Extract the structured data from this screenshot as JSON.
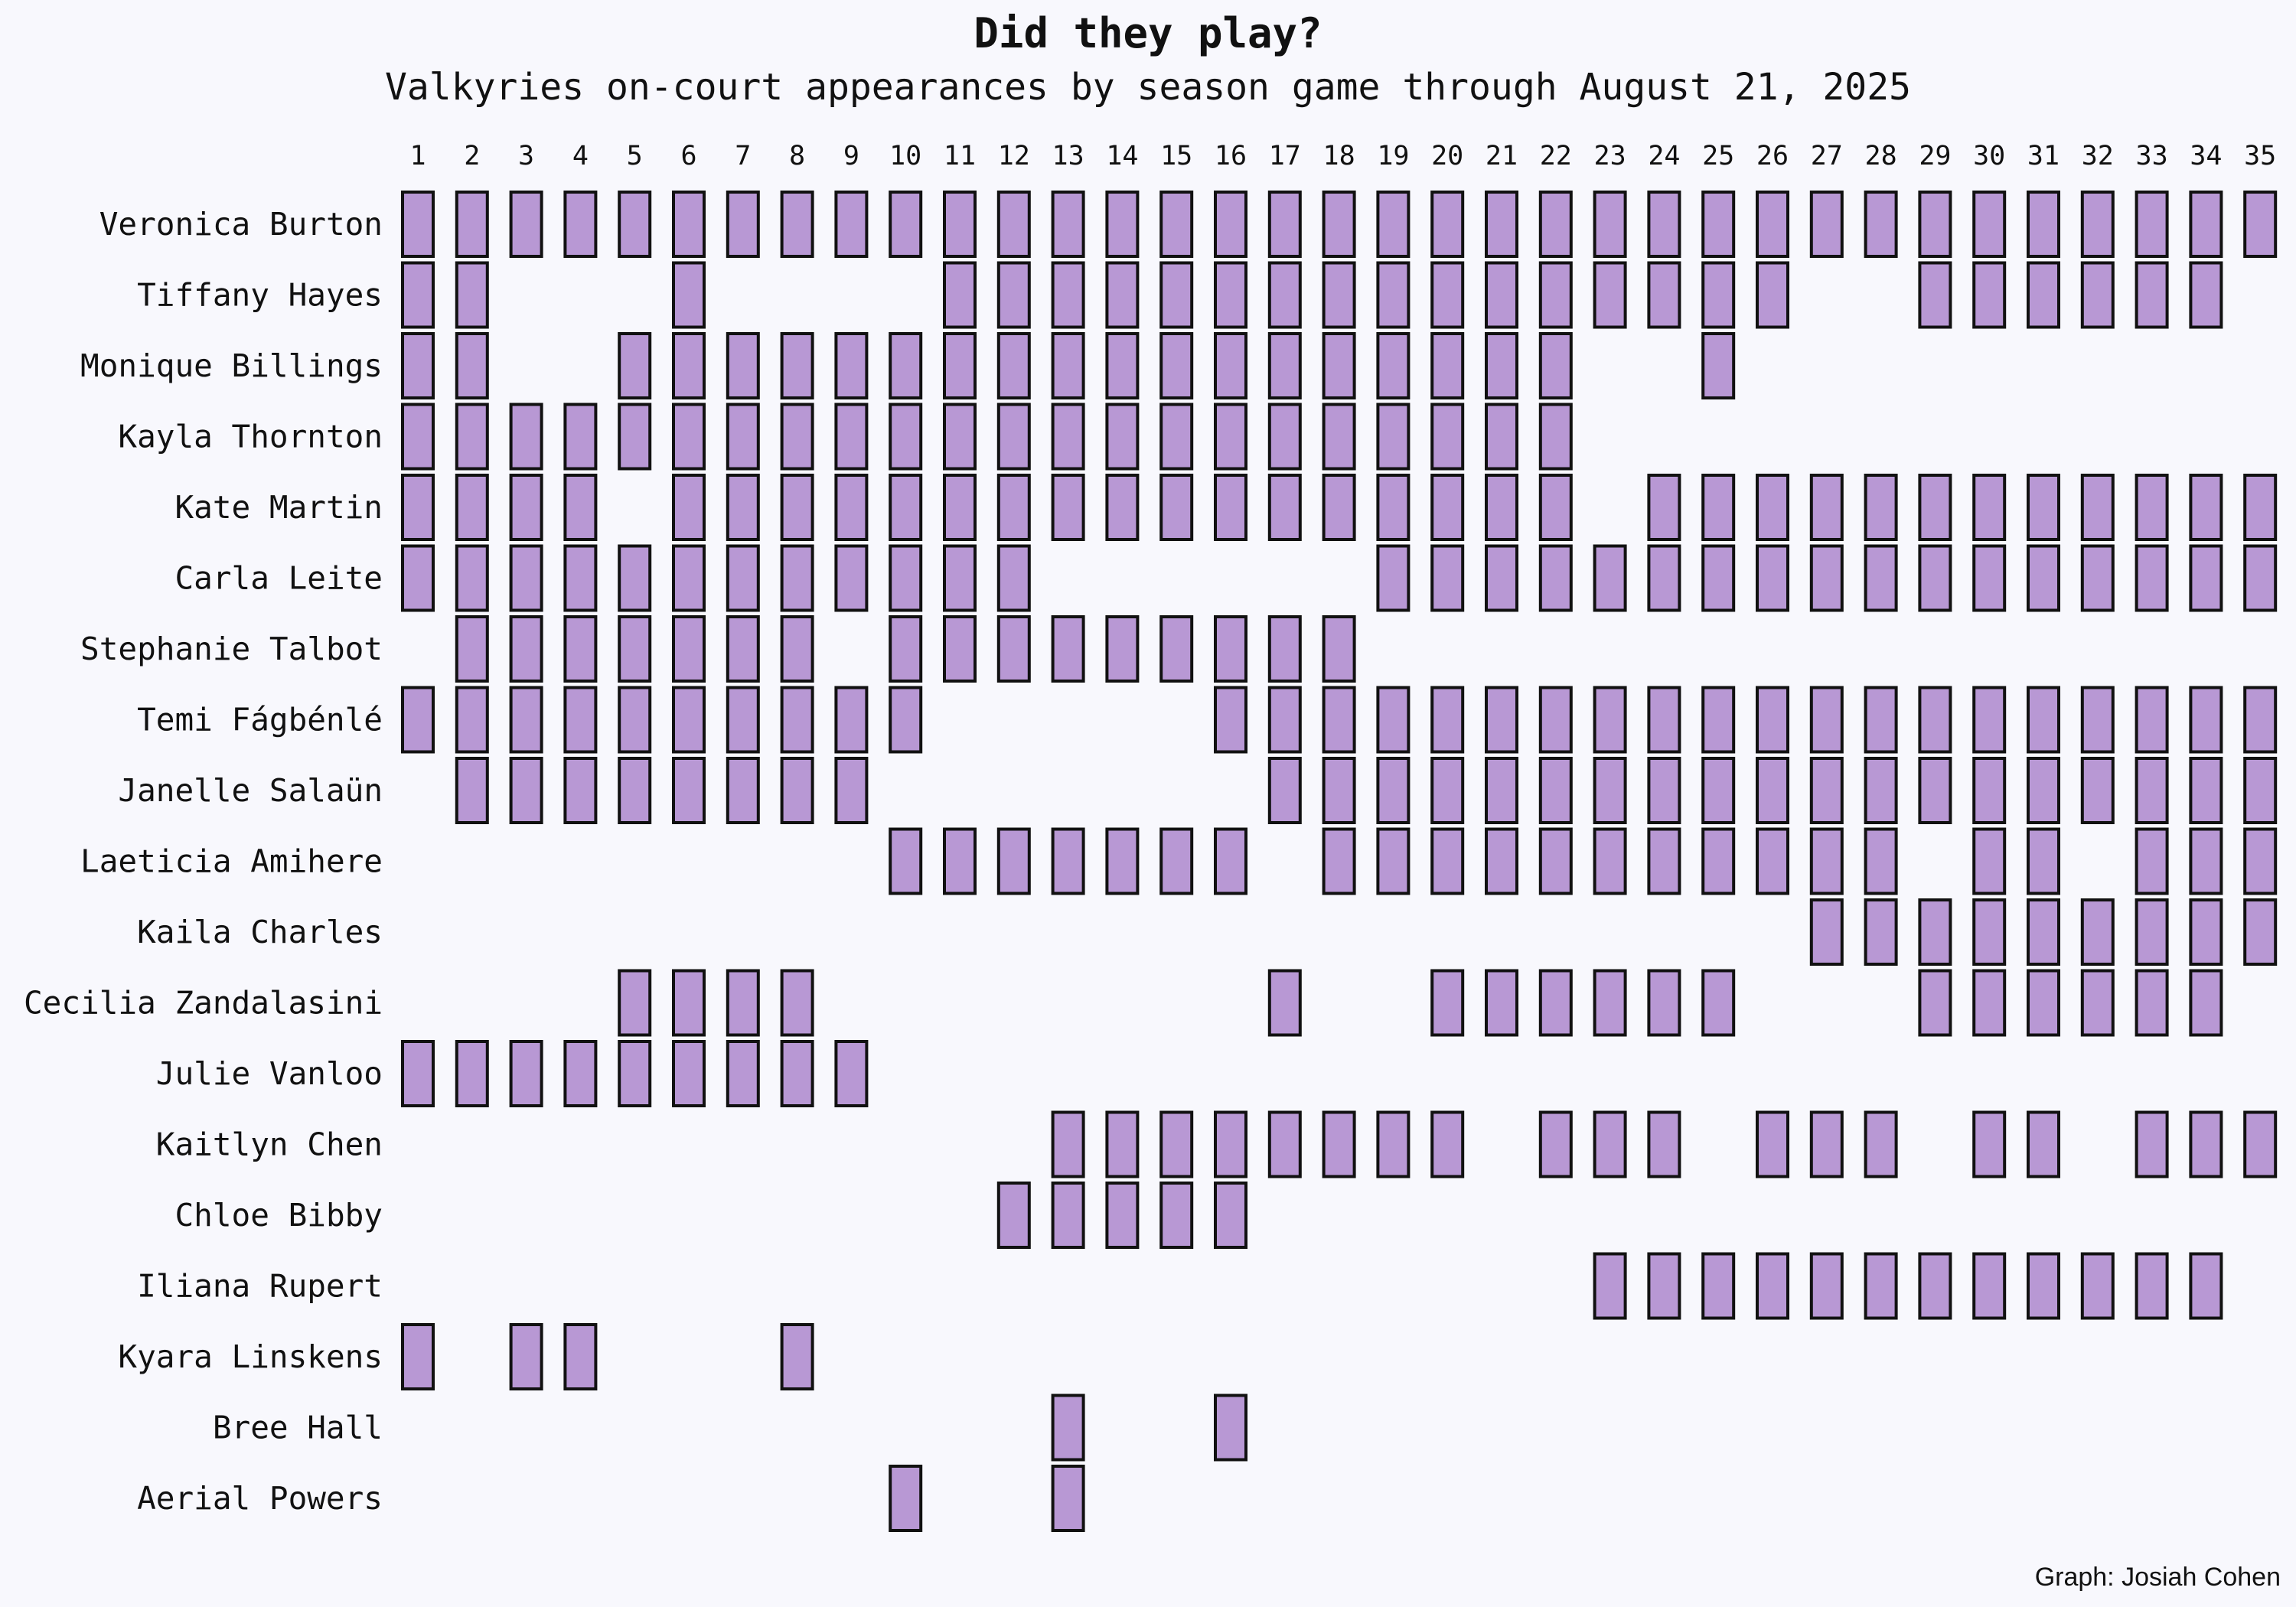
{
  "chart_data": {
    "type": "heatmap",
    "title": "Did they play?",
    "subtitle": "Valkyries on-court appearances by season game through August 21, 2025",
    "caption": "Graph: Josiah Cohen",
    "games": [
      1,
      2,
      3,
      4,
      5,
      6,
      7,
      8,
      9,
      10,
      11,
      12,
      13,
      14,
      15,
      16,
      17,
      18,
      19,
      20,
      21,
      22,
      23,
      24,
      25,
      26,
      27,
      28,
      29,
      30,
      31,
      32,
      33,
      34,
      35
    ],
    "colors": {
      "fill": "#b898d4",
      "stroke": "#111111",
      "background": "#f8f8fd"
    },
    "players": [
      {
        "name": "Veronica Burton",
        "games": [
          1,
          2,
          3,
          4,
          5,
          6,
          7,
          8,
          9,
          10,
          11,
          12,
          13,
          14,
          15,
          16,
          17,
          18,
          19,
          20,
          21,
          22,
          23,
          24,
          25,
          26,
          27,
          28,
          29,
          30,
          31,
          32,
          33,
          34,
          35
        ]
      },
      {
        "name": "Tiffany Hayes",
        "games": [
          1,
          2,
          6,
          11,
          12,
          13,
          14,
          15,
          16,
          17,
          18,
          19,
          20,
          21,
          22,
          23,
          24,
          25,
          26,
          29,
          30,
          31,
          32,
          33,
          34
        ]
      },
      {
        "name": "Monique Billings",
        "games": [
          1,
          2,
          5,
          6,
          7,
          8,
          9,
          10,
          11,
          12,
          13,
          14,
          15,
          16,
          17,
          18,
          19,
          20,
          21,
          22,
          25
        ]
      },
      {
        "name": "Kayla Thornton",
        "games": [
          1,
          2,
          3,
          4,
          5,
          6,
          7,
          8,
          9,
          10,
          11,
          12,
          13,
          14,
          15,
          16,
          17,
          18,
          19,
          20,
          21,
          22
        ]
      },
      {
        "name": "Kate Martin",
        "games": [
          1,
          2,
          3,
          4,
          6,
          7,
          8,
          9,
          10,
          11,
          12,
          13,
          14,
          15,
          16,
          17,
          18,
          19,
          20,
          21,
          22,
          24,
          25,
          26,
          27,
          28,
          29,
          30,
          31,
          32,
          33,
          34,
          35
        ]
      },
      {
        "name": "Carla Leite",
        "games": [
          1,
          2,
          3,
          4,
          5,
          6,
          7,
          8,
          9,
          10,
          11,
          12,
          19,
          20,
          21,
          22,
          23,
          24,
          25,
          26,
          27,
          28,
          29,
          30,
          31,
          32,
          33,
          34,
          35
        ]
      },
      {
        "name": "Stephanie Talbot",
        "games": [
          2,
          3,
          4,
          5,
          6,
          7,
          8,
          10,
          11,
          12,
          13,
          14,
          15,
          16,
          17,
          18
        ]
      },
      {
        "name": "Temi Fágbénlé",
        "games": [
          1,
          2,
          3,
          4,
          5,
          6,
          7,
          8,
          9,
          10,
          16,
          17,
          18,
          19,
          20,
          21,
          22,
          23,
          24,
          25,
          26,
          27,
          28,
          29,
          30,
          31,
          32,
          33,
          34,
          35
        ]
      },
      {
        "name": "Janelle Salaün",
        "games": [
          2,
          3,
          4,
          5,
          6,
          7,
          8,
          9,
          17,
          18,
          19,
          20,
          21,
          22,
          23,
          24,
          25,
          26,
          27,
          28,
          29,
          30,
          31,
          32,
          33,
          34,
          35
        ]
      },
      {
        "name": "Laeticia Amihere",
        "games": [
          10,
          11,
          12,
          13,
          14,
          15,
          16,
          18,
          19,
          20,
          21,
          22,
          23,
          24,
          25,
          26,
          27,
          28,
          30,
          31,
          33,
          34,
          35
        ]
      },
      {
        "name": "Kaila Charles",
        "games": [
          27,
          28,
          29,
          30,
          31,
          32,
          33,
          34,
          35
        ]
      },
      {
        "name": "Cecilia Zandalasini",
        "games": [
          5,
          6,
          7,
          8,
          17,
          20,
          21,
          22,
          23,
          24,
          25,
          29,
          30,
          31,
          32,
          33,
          34
        ]
      },
      {
        "name": "Julie Vanloo",
        "games": [
          1,
          2,
          3,
          4,
          5,
          6,
          7,
          8,
          9
        ]
      },
      {
        "name": "Kaitlyn Chen",
        "games": [
          13,
          14,
          15,
          16,
          17,
          18,
          19,
          20,
          22,
          23,
          24,
          26,
          27,
          28,
          30,
          31,
          33,
          34,
          35
        ]
      },
      {
        "name": "Chloe Bibby",
        "games": [
          12,
          13,
          14,
          15,
          16
        ]
      },
      {
        "name": "Iliana Rupert",
        "games": [
          23,
          24,
          25,
          26,
          27,
          28,
          29,
          30,
          31,
          32,
          33,
          34
        ]
      },
      {
        "name": "Kyara Linskens",
        "games": [
          1,
          3,
          4,
          8
        ]
      },
      {
        "name": "Bree Hall",
        "games": [
          13,
          16
        ]
      },
      {
        "name": "Aerial Powers",
        "games": [
          10,
          13
        ]
      }
    ]
  }
}
